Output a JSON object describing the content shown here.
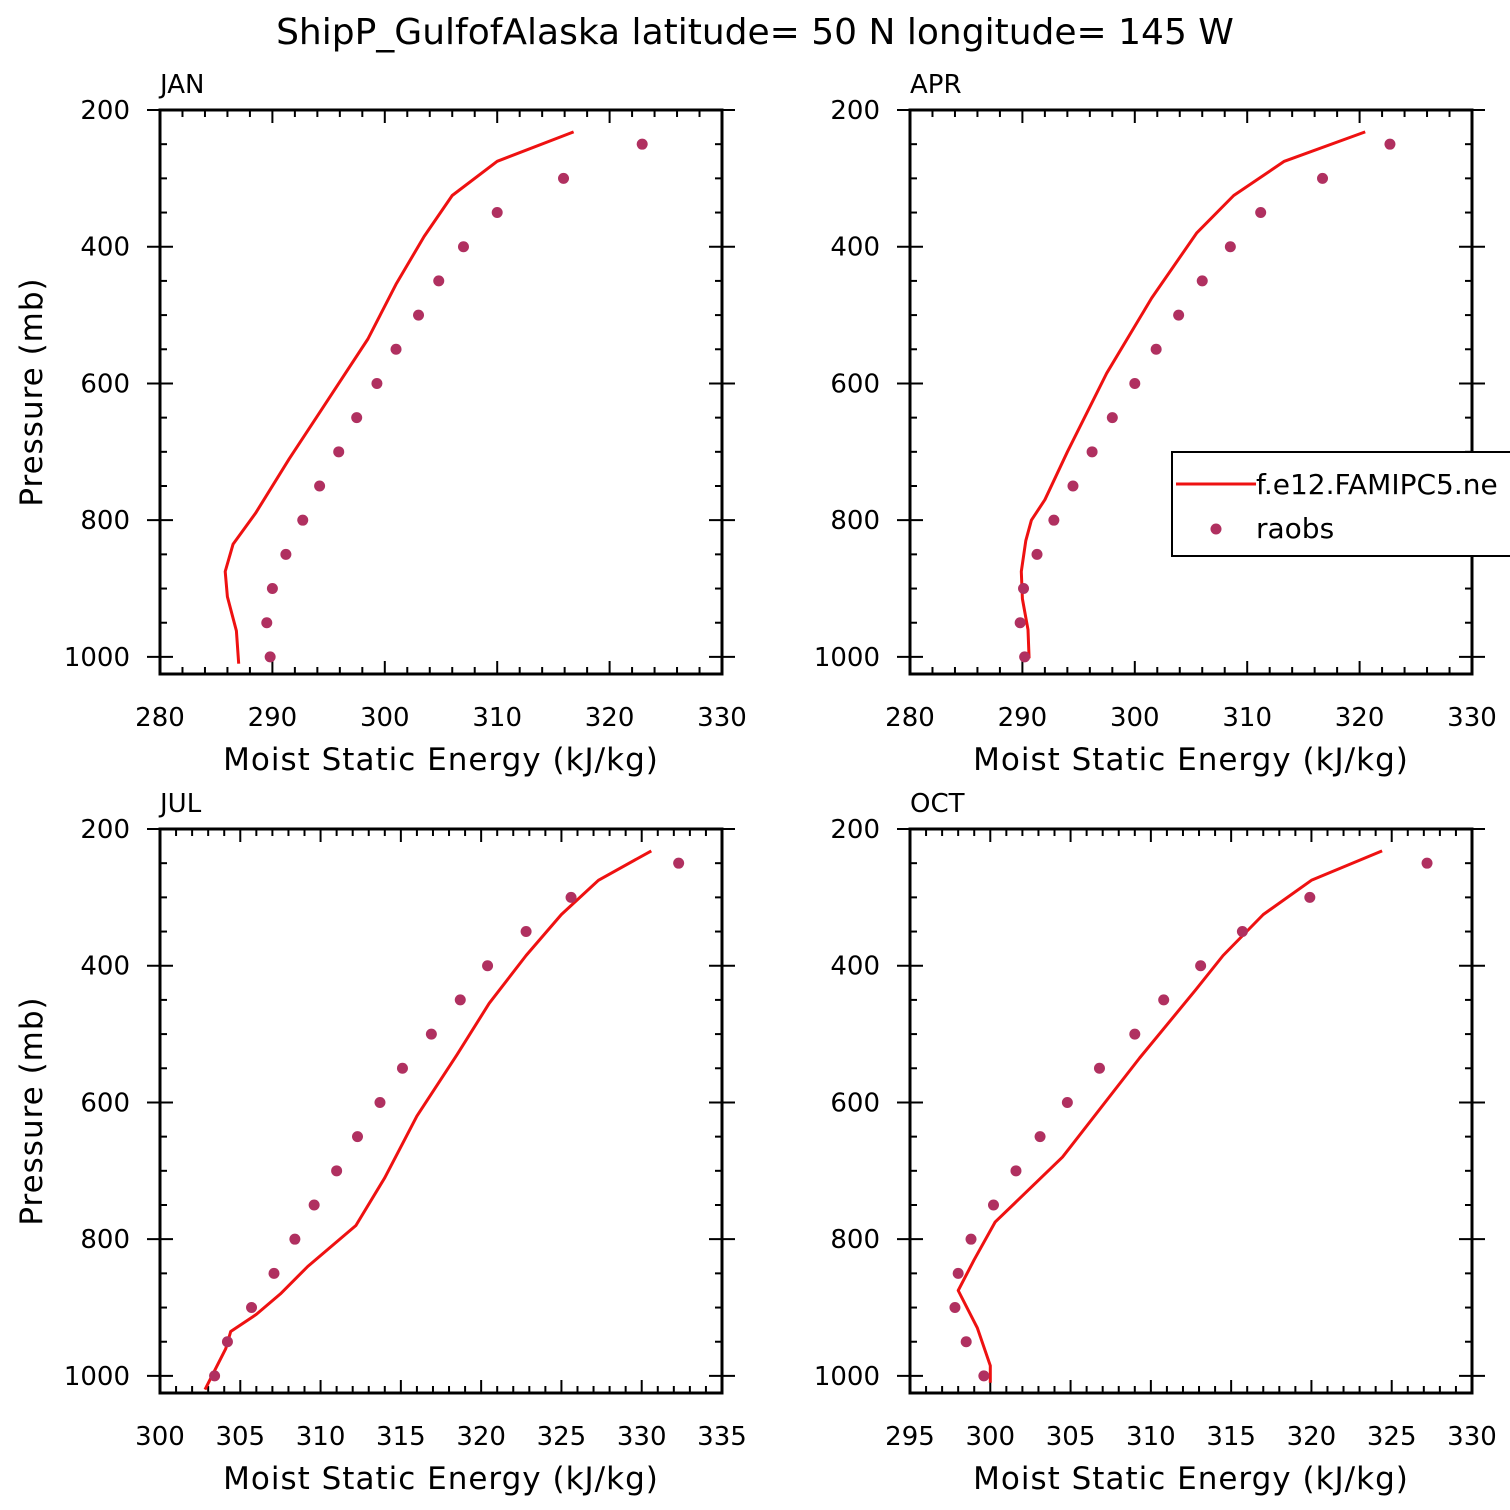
{
  "title": "ShipP_GulfofAlaska  latitude= 50 N longitude= 145 W",
  "colors": {
    "model": "#ee1111",
    "obs": "#b03060",
    "axis": "#000000"
  },
  "legend": {
    "entries": [
      {
        "label": "f.e12.FAMIPC5.ne",
        "style": "line"
      },
      {
        "label": "raobs",
        "style": "marker"
      }
    ],
    "placement": "right side of APR panel, clipped"
  },
  "chart_data": [
    {
      "type": "line",
      "panel": "JAN",
      "xlabel": "Moist Static Energy (kJ/kg)",
      "ylabel": "Pressure (mb)",
      "xlim": [
        280,
        330
      ],
      "ylim": [
        1025,
        200
      ],
      "xticks": [
        "280",
        "290",
        "300",
        "310",
        "320",
        "330"
      ],
      "yticks": [
        "200",
        "400",
        "600",
        "800",
        "1000"
      ],
      "series": [
        {
          "name": "f.e12.FAMIPC5.ne",
          "style": "line",
          "x": [
            287.0,
            286.8,
            286.0,
            285.8,
            286.5,
            288.5,
            291.5,
            294.5,
            298.5,
            301.0,
            303.5,
            306.0,
            310.0,
            316.8
          ],
          "y": [
            1010,
            962,
            912,
            875,
            835,
            790,
            710,
            635,
            535,
            455,
            385,
            325,
            275,
            232
          ]
        },
        {
          "name": "raobs",
          "style": "marker",
          "x": [
            289.8,
            289.5,
            290.0,
            291.2,
            292.7,
            294.2,
            295.9,
            297.5,
            299.3,
            301.0,
            303.0,
            304.8,
            307.0,
            310.0,
            315.9,
            322.9
          ],
          "y": [
            1000,
            950,
            900,
            850,
            800,
            750,
            700,
            650,
            600,
            550,
            500,
            450,
            400,
            350,
            300,
            250
          ]
        }
      ]
    },
    {
      "type": "line",
      "panel": "APR",
      "xlabel": "Moist Static Energy (kJ/kg)",
      "ylabel": "",
      "xlim": [
        280,
        330
      ],
      "ylim": [
        1025,
        200
      ],
      "xticks": [
        "280",
        "290",
        "300",
        "310",
        "320",
        "330"
      ],
      "yticks": [
        "200",
        "400",
        "600",
        "800",
        "1000"
      ],
      "series": [
        {
          "name": "f.e12.FAMIPC5.ne",
          "style": "line",
          "x": [
            290.6,
            290.5,
            290.0,
            289.9,
            290.3,
            290.8,
            292.0,
            294.0,
            297.5,
            301.5,
            305.5,
            308.8,
            313.3,
            320.5
          ],
          "y": [
            1002,
            960,
            915,
            875,
            830,
            800,
            770,
            700,
            585,
            475,
            380,
            325,
            275,
            232
          ]
        },
        {
          "name": "raobs",
          "style": "marker",
          "x": [
            290.2,
            289.8,
            290.1,
            291.3,
            292.8,
            294.5,
            296.2,
            298.0,
            300.0,
            301.9,
            303.9,
            306.0,
            308.5,
            311.2,
            316.7,
            322.7
          ],
          "y": [
            1000,
            950,
            900,
            850,
            800,
            750,
            700,
            650,
            600,
            550,
            500,
            450,
            400,
            350,
            300,
            250
          ]
        }
      ]
    },
    {
      "type": "line",
      "panel": "JUL",
      "xlabel": "Moist Static Energy (kJ/kg)",
      "ylabel": "Pressure (mb)",
      "xlim": [
        300,
        335
      ],
      "ylim": [
        1025,
        200
      ],
      "xticks": [
        "300",
        "305",
        "310",
        "315",
        "320",
        "325",
        "330",
        "335"
      ],
      "yticks": [
        "200",
        "400",
        "600",
        "800",
        "1000"
      ],
      "series": [
        {
          "name": "f.e12.FAMIPC5.ne",
          "style": "line",
          "x": [
            302.8,
            304.1,
            304.4,
            306.0,
            307.5,
            309.2,
            312.2,
            314.0,
            316.0,
            318.5,
            320.5,
            322.8,
            325.0,
            327.3,
            330.6
          ],
          "y": [
            1020,
            960,
            935,
            910,
            880,
            840,
            780,
            710,
            620,
            530,
            455,
            385,
            325,
            275,
            232
          ]
        },
        {
          "name": "raobs",
          "style": "marker",
          "x": [
            303.4,
            304.2,
            305.7,
            307.1,
            308.4,
            309.6,
            311.0,
            312.3,
            313.7,
            315.1,
            316.9,
            318.7,
            320.4,
            322.8,
            325.6,
            332.3
          ],
          "y": [
            1000,
            950,
            900,
            850,
            800,
            750,
            700,
            650,
            600,
            550,
            500,
            450,
            400,
            350,
            300,
            250
          ]
        }
      ]
    },
    {
      "type": "line",
      "panel": "OCT",
      "xlabel": "Moist Static Energy (kJ/kg)",
      "ylabel": "",
      "xlim": [
        295,
        330
      ],
      "ylim": [
        1025,
        200
      ],
      "xticks": [
        "295",
        "300",
        "305",
        "310",
        "315",
        "320",
        "325",
        "330"
      ],
      "yticks": [
        "200",
        "400",
        "600",
        "800",
        "1000"
      ],
      "series": [
        {
          "name": "f.e12.FAMIPC5.ne",
          "style": "line",
          "x": [
            300.0,
            300.0,
            299.2,
            298.0,
            299.0,
            300.3,
            304.5,
            309.3,
            312.8,
            314.5,
            317.0,
            320.0,
            324.4
          ],
          "y": [
            1010,
            985,
            930,
            875,
            830,
            775,
            680,
            535,
            435,
            385,
            325,
            275,
            232
          ]
        },
        {
          "name": "raobs",
          "style": "marker",
          "x": [
            299.6,
            298.5,
            297.8,
            298.0,
            298.8,
            300.2,
            301.6,
            303.1,
            304.8,
            306.8,
            309.0,
            310.8,
            313.1,
            315.7,
            319.9,
            327.2
          ],
          "y": [
            1000,
            950,
            900,
            850,
            800,
            750,
            700,
            650,
            600,
            550,
            500,
            450,
            400,
            350,
            300,
            250
          ]
        }
      ]
    }
  ]
}
